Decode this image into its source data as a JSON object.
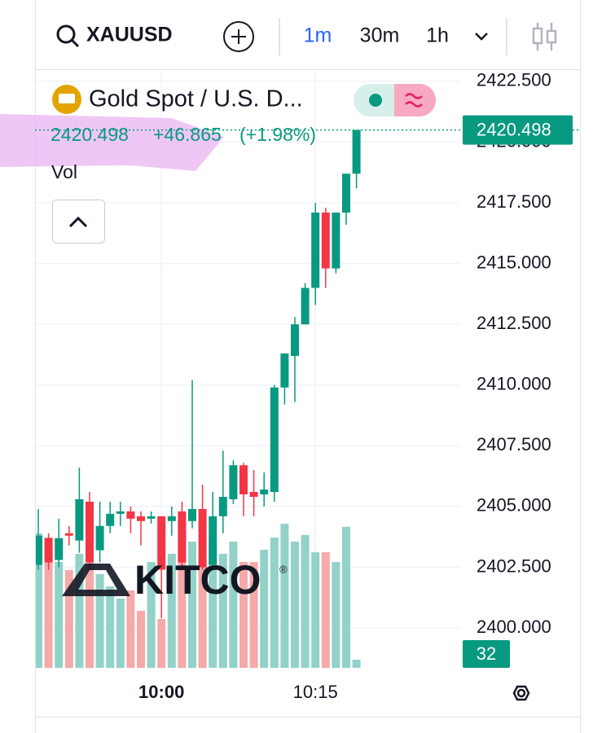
{
  "toolbar": {
    "symbol": "XAUUSD",
    "intervals": [
      "1m",
      "30m",
      "1h"
    ]
  },
  "chart_data": {
    "type": "candlestick",
    "name": "Gold Spot / U.S. D...",
    "change_label": "+46.865",
    "change_percent_label": "(+1.98%)",
    "watermark": "KITCO",
    "watermark_mark": "®",
    "categories": [
      null,
      null,
      null,
      null,
      null,
      null,
      null,
      null,
      null,
      null,
      null,
      null,
      "10:00",
      null,
      null,
      null,
      null,
      null,
      null,
      null,
      null,
      null,
      null,
      null,
      null,
      null,
      null,
      "10:15",
      null,
      null,
      null,
      null
    ],
    "open": [
      2402.6,
      2403.7,
      2402.8,
      2403.9,
      2403.6,
      2405.2,
      2403.2,
      2404.2,
      2404.7,
      2404.8,
      2404.6,
      2404.5,
      2404.6,
      2404.4,
      2404.8,
      2404.4,
      2404.9,
      2402.6,
      2404.6,
      2405.3,
      2406.7,
      2405.6,
      2405.5,
      2405.6,
      2409.9,
      2411.2,
      2412.5,
      2414.0,
      2417.1,
      2414.8,
      2417.1,
      2418.7
    ],
    "high": [
      2404.9,
      2403.9,
      2404.5,
      2404.2,
      2406.6,
      2405.6,
      2405.2,
      2405.2,
      2405.2,
      2405.0,
      2404.8,
      2404.8,
      2404.6,
      2405.0,
      2405.2,
      2410.2,
      2405.9,
      2405.6,
      2407.3,
      2406.9,
      2406.8,
      2406.5,
      2406.4,
      2410.0,
      2411.3,
      2412.8,
      2414.2,
      2417.5,
      2417.3,
      2417.1,
      2418.7,
      2420.5
    ],
    "low": [
      2402.4,
      2402.4,
      2402.5,
      2403.4,
      2403.1,
      2402.4,
      2402.7,
      2403.9,
      2404.2,
      2403.9,
      2403.4,
      2404.3,
      2400.4,
      2403.8,
      2402.5,
      2404.1,
      2402.4,
      2402.4,
      2403.9,
      2405.1,
      2404.6,
      2404.6,
      2405.0,
      2405.2,
      2409.2,
      2409.3,
      2412.5,
      2413.3,
      2414.0,
      2414.6,
      2416.6,
      2418.1
    ],
    "close": [
      2403.8,
      2402.7,
      2403.7,
      2403.8,
      2405.3,
      2402.7,
      2404.2,
      2404.7,
      2404.8,
      2404.5,
      2404.4,
      2404.6,
      2402.4,
      2404.6,
      2402.7,
      2404.9,
      2402.5,
      2404.6,
      2405.4,
      2406.7,
      2405.5,
      2405.4,
      2405.7,
      2409.9,
      2411.3,
      2412.5,
      2414.0,
      2417.1,
      2414.8,
      2417.1,
      2418.7,
      2420.498
    ],
    "up_color": "#089981",
    "down_color": "#f23645",
    "volume": {
      "name": "Vol",
      "values": [
        528,
        512,
        416,
        384,
        448,
        496,
        368,
        320,
        272,
        304,
        224,
        416,
        192,
        448,
        576,
        496,
        432,
        496,
        448,
        496,
        416,
        416,
        464,
        512,
        566,
        496,
        522,
        454,
        454,
        416,
        554,
        32
      ],
      "up_color": "#92d2c8",
      "down_color": "#f5a9a9",
      "vlim": [
        0,
        2342
      ]
    },
    "ylim": [
      2398.36,
      2422.9
    ],
    "yticks": [
      {
        "value": 2400,
        "label": "2400.000"
      },
      {
        "value": 2402.5,
        "label": "2402.500"
      },
      {
        "value": 2405,
        "label": "2405.000"
      },
      {
        "value": 2407.5,
        "label": "2407.500"
      },
      {
        "value": 2410,
        "label": "2410.000"
      },
      {
        "value": 2412.5,
        "label": "2412.500"
      },
      {
        "value": 2415,
        "label": "2415.000"
      },
      {
        "value": 2417.5,
        "label": "2417.500"
      },
      {
        "value": 2420,
        "label": "2420.000"
      },
      {
        "value": 2422.5,
        "label": "2422.500"
      }
    ],
    "grid": true
  }
}
